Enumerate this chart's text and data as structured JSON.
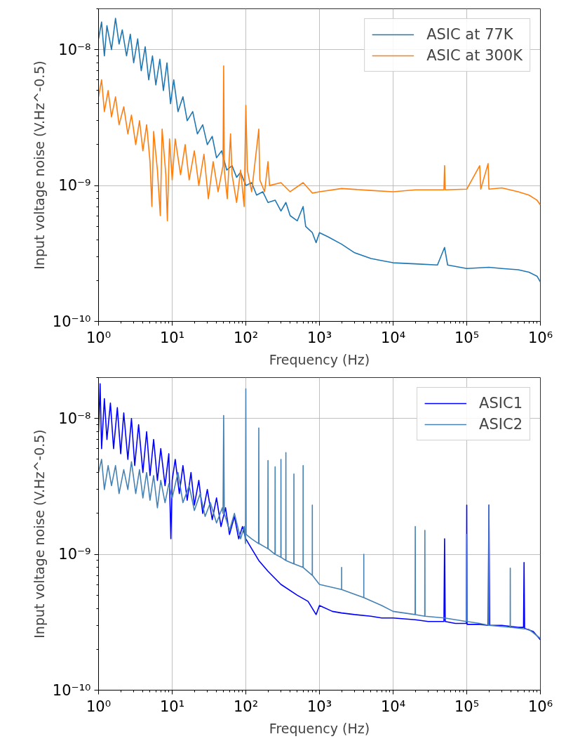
{
  "chart_data": [
    {
      "type": "line",
      "xlabel": "Frequency (Hz)",
      "ylabel": "Input voltage noise (V.Hz^-0.5)",
      "log": "xy",
      "grid": true,
      "legend": "top right",
      "line_style": "solid",
      "xlim": [
        1,
        1000000
      ],
      "ylim": [
        1e-10,
        2e-08
      ],
      "xticks": [
        {
          "value": 1,
          "label": "10⁰"
        },
        {
          "value": 10,
          "label": "10¹"
        },
        {
          "value": 100,
          "label": "10²"
        },
        {
          "value": 1000,
          "label": "10³"
        },
        {
          "value": 10000,
          "label": "10⁴"
        },
        {
          "value": 100000,
          "label": "10⁵"
        },
        {
          "value": 1000000,
          "label": "10⁶"
        }
      ],
      "yticks": [
        {
          "value": 1e-10,
          "label": "10⁻¹⁰"
        },
        {
          "value": 1e-09,
          "label": "10⁻⁹"
        },
        {
          "value": 1e-08,
          "label": "10⁻⁸"
        }
      ],
      "series": [
        {
          "name": "ASIC at 77K",
          "color": "#1f77b4",
          "x": [
            1,
            1.1,
            1.2,
            1.3,
            1.5,
            1.7,
            1.9,
            2.1,
            2.4,
            2.7,
            3,
            3.4,
            3.8,
            4.3,
            4.8,
            5.4,
            6,
            6.8,
            7.6,
            8.5,
            9.5,
            10.5,
            12,
            14,
            16,
            19,
            22,
            26,
            30,
            35,
            40,
            47,
            55,
            65,
            75,
            85,
            100,
            120,
            140,
            170,
            200,
            250,
            300,
            350,
            400,
            500,
            600,
            650,
            800,
            900,
            1000,
            1300,
            2000,
            3000,
            5000,
            7000,
            10000,
            20000,
            40000,
            50000,
            55000,
            100000,
            200000,
            300000,
            500000,
            700000,
            900000,
            1000000
          ],
          "values": [
            1.2e-08,
            1.6e-08,
            9e-09,
            1.5e-08,
            1e-08,
            1.7e-08,
            1.1e-08,
            1.4e-08,
            9e-09,
            1.3e-08,
            8e-09,
            1.2e-08,
            7e-09,
            1.05e-08,
            6e-09,
            9e-09,
            5.5e-09,
            8.5e-09,
            5e-09,
            8e-09,
            4e-09,
            6e-09,
            3.5e-09,
            4.5e-09,
            3e-09,
            3.5e-09,
            2.4e-09,
            2.8e-09,
            2e-09,
            2.3e-09,
            1.6e-09,
            1.8e-09,
            1.3e-09,
            1.4e-09,
            1.15e-09,
            1.25e-09,
            1e-09,
            1.05e-09,
            8.5e-10,
            9e-10,
            7.5e-10,
            7.8e-10,
            6.5e-10,
            7.5e-10,
            6e-10,
            5.5e-10,
            7e-10,
            5e-10,
            4.5e-10,
            3.8e-10,
            4.5e-10,
            4.2e-10,
            3.7e-10,
            3.2e-10,
            2.9e-10,
            2.8e-10,
            2.7e-10,
            2.65e-10,
            2.6e-10,
            3.5e-10,
            2.6e-10,
            2.45e-10,
            2.5e-10,
            2.45e-10,
            2.4e-10,
            2.3e-10,
            2.15e-10,
            1.95e-10
          ]
        },
        {
          "name": "ASIC at 300K",
          "color": "#ff7f0e",
          "x": [
            1,
            1.1,
            1.2,
            1.35,
            1.5,
            1.7,
            1.9,
            2.2,
            2.5,
            2.8,
            3.2,
            3.6,
            4,
            4.5,
            5,
            5.3,
            5.6,
            6.3,
            6.9,
            7.3,
            8.2,
            8.6,
            9.2,
            10,
            11,
            13,
            15,
            17,
            20,
            23,
            27,
            31,
            36,
            42,
            49,
            50,
            51,
            56,
            62,
            65,
            75,
            85,
            95,
            100,
            105,
            120,
            150,
            155,
            180,
            200,
            210,
            300,
            400,
            600,
            800,
            1000,
            2000,
            5000,
            10000,
            20000,
            49000,
            50000,
            51000,
            100000,
            150000,
            155000,
            195000,
            200000,
            300000,
            500000,
            700000,
            900000,
            1000000
          ],
          "values": [
            4.5e-09,
            6e-09,
            3.5e-09,
            5e-09,
            3.2e-09,
            4.5e-09,
            2.8e-09,
            3.8e-09,
            2.4e-09,
            3.3e-09,
            2e-09,
            3e-09,
            1.8e-09,
            2.8e-09,
            1.5e-09,
            7e-10,
            2.5e-09,
            1.3e-09,
            6e-10,
            2.6e-09,
            1.2e-09,
            5.5e-10,
            2.2e-09,
            1.1e-09,
            2.2e-09,
            1.2e-09,
            2e-09,
            1.1e-09,
            1.8e-09,
            1e-09,
            1.7e-09,
            8e-10,
            1.5e-09,
            9e-10,
            1.4e-09,
            7.6e-09,
            1.3e-09,
            8e-10,
            2.4e-09,
            1.2e-09,
            7.5e-10,
            1.3e-09,
            7e-10,
            3.9e-09,
            1.3e-09,
            9e-10,
            2.6e-09,
            1.1e-09,
            9e-10,
            1.5e-09,
            1e-09,
            1.05e-09,
            9e-10,
            1.05e-09,
            8.8e-10,
            9e-10,
            9.5e-10,
            9.2e-10,
            9e-10,
            9.3e-10,
            9.3e-10,
            1.4e-09,
            9.3e-10,
            9.4e-10,
            1.4e-09,
            9.4e-10,
            1.45e-09,
            9.4e-10,
            9.6e-10,
            9e-10,
            8.5e-10,
            7.8e-10,
            7.2e-10
          ]
        }
      ]
    },
    {
      "type": "line",
      "xlabel": "Frequency (Hz)",
      "ylabel": "Input voltage noise (V.Hz^-0.5)",
      "log": "xy",
      "grid": true,
      "legend": "top right",
      "line_style": "solid",
      "xlim": [
        1,
        1000000
      ],
      "ylim": [
        1e-10,
        2e-08
      ],
      "xticks": [
        {
          "value": 1,
          "label": "10⁰"
        },
        {
          "value": 10,
          "label": "10¹"
        },
        {
          "value": 100,
          "label": "10²"
        },
        {
          "value": 1000,
          "label": "10³"
        },
        {
          "value": 10000,
          "label": "10⁴"
        },
        {
          "value": 100000,
          "label": "10⁵"
        },
        {
          "value": 1000000,
          "label": "10⁶"
        }
      ],
      "yticks": [
        {
          "value": 1e-10,
          "label": "10⁻¹⁰"
        },
        {
          "value": 1e-09,
          "label": "10⁻⁹"
        },
        {
          "value": 1e-08,
          "label": "10⁻⁸"
        }
      ],
      "series": [
        {
          "name": "ASIC1",
          "color": "#0000ff",
          "x": [
            1,
            1.05,
            1.1,
            1.2,
            1.3,
            1.45,
            1.6,
            1.8,
            2,
            2.2,
            2.5,
            2.8,
            3.1,
            3.5,
            4,
            4.5,
            5,
            5.6,
            6.3,
            7,
            8,
            9,
            9.6,
            10,
            11,
            12.5,
            14,
            16,
            18,
            20,
            23,
            26,
            30,
            35,
            40,
            46,
            53,
            60,
            70,
            80,
            90,
            100,
            120,
            150,
            200,
            300,
            500,
            700,
            900,
            1000,
            1500,
            2000,
            3000,
            5000,
            7000,
            10000,
            20000,
            30000,
            49000,
            50000,
            51000,
            70000,
            99000,
            100000,
            101000,
            150000,
            195000,
            200000,
            205000,
            300000,
            500000,
            590000,
            600000,
            610000,
            800000,
            1000000
          ],
          "values": [
            8e-09,
            1.8e-08,
            6e-09,
            1.4e-08,
            7e-09,
            1.3e-08,
            6e-09,
            1.2e-08,
            5.5e-09,
            1.1e-08,
            5e-09,
            1e-08,
            4.5e-09,
            9e-09,
            4e-09,
            8e-09,
            3.8e-09,
            7e-09,
            3.5e-09,
            6e-09,
            3.2e-09,
            5.5e-09,
            1.3e-09,
            3.5e-09,
            5e-09,
            2.8e-09,
            4.5e-09,
            2.5e-09,
            4e-09,
            2.3e-09,
            3.5e-09,
            2e-09,
            3e-09,
            1.8e-09,
            2.6e-09,
            1.6e-09,
            2.2e-09,
            1.4e-09,
            1.9e-09,
            1.3e-09,
            1.6e-09,
            1.3e-09,
            1.1e-09,
            9e-10,
            7.5e-10,
            6e-10,
            5e-10,
            4.5e-10,
            3.6e-10,
            4.2e-10,
            3.8e-10,
            3.7e-10,
            3.6e-10,
            3.5e-10,
            3.4e-10,
            3.4e-10,
            3.3e-10,
            3.2e-10,
            3.2e-10,
            1.3e-09,
            3.2e-10,
            3.1e-10,
            3.1e-10,
            2.3e-09,
            3.05e-10,
            3.05e-10,
            3e-10,
            2.3e-09,
            3e-10,
            3e-10,
            2.9e-10,
            2.9e-10,
            8.7e-10,
            2.85e-10,
            2.7e-10,
            2.35e-10
          ]
        },
        {
          "name": "ASIC2",
          "color": "#4682b4",
          "x": [
            1,
            1.1,
            1.2,
            1.35,
            1.5,
            1.7,
            1.9,
            2.2,
            2.5,
            2.8,
            3.2,
            3.6,
            4,
            4.5,
            5,
            5.6,
            6.3,
            7,
            8,
            9,
            10,
            12,
            14,
            17,
            20,
            24,
            28,
            33,
            40,
            48,
            49,
            50,
            51,
            60,
            70,
            85,
            95,
            99,
            100,
            101,
            120,
            149,
            150,
            151,
            199,
            200,
            201,
            249,
            250,
            251,
            299,
            300,
            301,
            349,
            350,
            351,
            449,
            450,
            451,
            599,
            600,
            601,
            799,
            800,
            801,
            1000,
            1999,
            2000,
            2001,
            3999,
            4000,
            4001,
            7000,
            10000,
            19900,
            20000,
            20100,
            26900,
            27000,
            27100,
            50000,
            99000,
            100000,
            101000,
            150000,
            199000,
            200000,
            201000,
            389000,
            390000,
            391000,
            700000,
            1000000
          ],
          "values": [
            4e-09,
            5e-09,
            3e-09,
            4.5e-09,
            3.2e-09,
            4.5e-09,
            2.8e-09,
            4.2e-09,
            3e-09,
            4.8e-09,
            2.8e-09,
            4.2e-09,
            2.6e-09,
            4e-09,
            2.5e-09,
            3.8e-09,
            2.2e-09,
            3.5e-09,
            2.4e-09,
            3.3e-09,
            2.6e-09,
            4e-09,
            2.4e-09,
            3.2e-09,
            2.1e-09,
            2.8e-09,
            1.9e-09,
            2.4e-09,
            1.7e-09,
            2.2e-09,
            2e-09,
            1.05e-08,
            2e-09,
            1.5e-09,
            2e-09,
            1.3e-09,
            1.6e-09,
            1.2e-09,
            1.65e-08,
            1.4e-09,
            1.3e-09,
            1.2e-09,
            8.5e-09,
            1.2e-09,
            1.1e-09,
            4.9e-09,
            1.1e-09,
            1e-09,
            4.4e-09,
            1e-09,
            9.5e-10,
            5e-09,
            9.5e-10,
            9e-10,
            5.6e-09,
            9e-10,
            8.5e-10,
            3.9e-09,
            8.5e-10,
            8e-10,
            4.5e-09,
            8e-10,
            7e-10,
            2.3e-09,
            7e-10,
            6e-10,
            5.5e-10,
            8e-10,
            5.5e-10,
            4.8e-10,
            1e-09,
            4.8e-10,
            4.2e-10,
            3.8e-10,
            3.6e-10,
            1.6e-09,
            3.6e-10,
            3.5e-10,
            1.5e-09,
            3.5e-10,
            3.4e-10,
            3.2e-10,
            1.4e-09,
            3.2e-10,
            3.1e-10,
            3e-10,
            2.3e-09,
            3e-10,
            2.9e-10,
            7.9e-10,
            2.9e-10,
            2.8e-10,
            2.4e-10
          ]
        }
      ]
    }
  ]
}
